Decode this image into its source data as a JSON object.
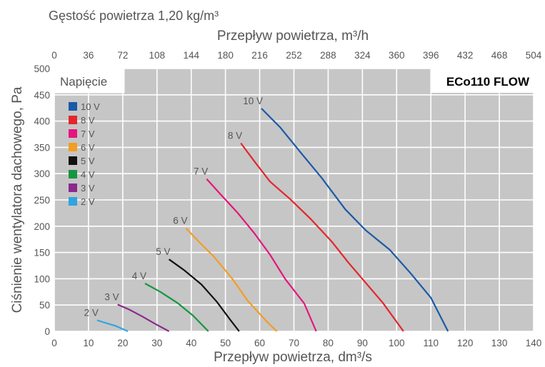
{
  "header": {
    "density_label": "Gęstość powietrza 1,20 kg/m³"
  },
  "chart_data": {
    "type": "line",
    "model": "ECo110 FLOW",
    "legend_title": "Napięcie",
    "xlabel": "Przepływ powietrza, dm³/s",
    "x2label": "Przepływ powietrza, m³/h",
    "ylabel": "Ciśnienie wentylatora dachowego, Pa",
    "xlim": [
      0,
      140
    ],
    "ylim": [
      0,
      500
    ],
    "x2lim": [
      0,
      504
    ],
    "xticks": [
      "0",
      "10",
      "20",
      "30",
      "40",
      "50",
      "60",
      "70",
      "80",
      "90",
      "100",
      "110",
      "120",
      "130",
      "140"
    ],
    "yticks": [
      "0",
      "50",
      "100",
      "150",
      "200",
      "250",
      "300",
      "350",
      "400",
      "450",
      "500"
    ],
    "x2ticks": [
      "0",
      "36",
      "72",
      "108",
      "144",
      "180",
      "216",
      "252",
      "288",
      "324",
      "360",
      "396",
      "432",
      "468",
      "504"
    ],
    "grid": true,
    "series": [
      {
        "name": "10 V",
        "label": "10 V",
        "color": "#1a5aa6",
        "points": [
          [
            60.5,
            424
          ],
          [
            66,
            388
          ],
          [
            72,
            340
          ],
          [
            78,
            293
          ],
          [
            85,
            232
          ],
          [
            91,
            192
          ],
          [
            98,
            155
          ],
          [
            104,
            111
          ],
          [
            110,
            64
          ],
          [
            115,
            0
          ]
        ]
      },
      {
        "name": "8 V",
        "label": "8 V",
        "color": "#e3262d",
        "points": [
          [
            54.5,
            358
          ],
          [
            58.5,
            323
          ],
          [
            63,
            285
          ],
          [
            69,
            251
          ],
          [
            75,
            213
          ],
          [
            81,
            171
          ],
          [
            86,
            130
          ],
          [
            91,
            92
          ],
          [
            96,
            54
          ],
          [
            102,
            0
          ]
        ]
      },
      {
        "name": "7 V",
        "label": "7 V",
        "color": "#e5157d",
        "points": [
          [
            44.5,
            290
          ],
          [
            48.5,
            261
          ],
          [
            53.5,
            226
          ],
          [
            58.5,
            186
          ],
          [
            63,
            146
          ],
          [
            67.5,
            99
          ],
          [
            73,
            53
          ],
          [
            76.5,
            0
          ]
        ]
      },
      {
        "name": "6 V",
        "label": "6 V",
        "color": "#f29d24",
        "points": [
          [
            38.5,
            196
          ],
          [
            42,
            172
          ],
          [
            46.5,
            143
          ],
          [
            52,
            100
          ],
          [
            56.5,
            58
          ],
          [
            62,
            19
          ],
          [
            65,
            0
          ]
        ]
      },
      {
        "name": "5 V",
        "label": "5 V",
        "color": "#111111",
        "points": [
          [
            33.5,
            137
          ],
          [
            38,
            116
          ],
          [
            43,
            89
          ],
          [
            47.5,
            56
          ],
          [
            51.5,
            21
          ],
          [
            54,
            0
          ]
        ]
      },
      {
        "name": "4 V",
        "label": "4 V",
        "color": "#169640",
        "points": [
          [
            26.5,
            91
          ],
          [
            31,
            75
          ],
          [
            36,
            54
          ],
          [
            40.5,
            30
          ],
          [
            45,
            0
          ]
        ]
      },
      {
        "name": "3 V",
        "label": "3 V",
        "color": "#8b2a8c",
        "points": [
          [
            18.5,
            51
          ],
          [
            22,
            41
          ],
          [
            25.5,
            29
          ],
          [
            29.5,
            14
          ],
          [
            33.5,
            0
          ]
        ]
      },
      {
        "name": "2 V",
        "label": "2 V",
        "color": "#2fa4e0",
        "points": [
          [
            12.5,
            21
          ],
          [
            15.5,
            15
          ],
          [
            18,
            10
          ],
          [
            21.5,
            0
          ]
        ]
      }
    ]
  }
}
